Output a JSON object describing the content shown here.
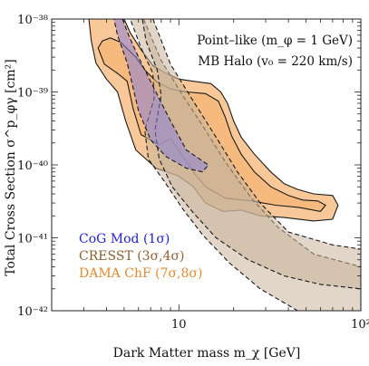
{
  "chart_data": {
    "type": "area",
    "xlabel": "Dark Matter mass   m_χ  [GeV]",
    "ylabel": "Total Cross Section  σ^p_φγ [cm²]",
    "xscale": "log",
    "yscale": "log",
    "xlim": [
      2,
      100
    ],
    "ylim": [
      1e-42,
      1e-38
    ],
    "x_tick_labels": [
      {
        "value": 10,
        "label": "10"
      },
      {
        "value": 100,
        "label": "10²"
      }
    ],
    "y_tick_labels": [
      {
        "value": 1e-38,
        "label": "10⁻³⁸"
      },
      {
        "value": 1e-39,
        "label": "10⁻³⁹"
      },
      {
        "value": 1e-40,
        "label": "10⁻⁴⁰"
      },
      {
        "value": 1e-41,
        "label": "10⁻⁴¹"
      },
      {
        "value": 1e-42,
        "label": "10⁻⁴²"
      }
    ],
    "annotations": [
      "Point–like (m_φ = 1 GeV)",
      "MB Halo (v₀ = 220 km/s)"
    ],
    "legend_position": "bottom-left",
    "series": [
      {
        "name": "CoG Mod (1σ)",
        "color": "#2222cc",
        "fill": "#8a7fd8",
        "contours": [
          {
            "level": "1σ",
            "points": [
              [
                4.9,
                1e-38
              ],
              [
                5.3,
                6e-39
              ],
              [
                6.0,
                3e-39
              ],
              [
                7.2,
                1.2e-39
              ],
              [
                9.0,
                4e-40
              ],
              [
                11.0,
                1.6e-40
              ],
              [
                14.5,
                1e-40
              ],
              [
                13.5,
                8e-41
              ],
              [
                11.0,
                9e-41
              ],
              [
                8.5,
                1.3e-40
              ],
              [
                7.0,
                2.2e-40
              ],
              [
                6.0,
                5.5e-40
              ],
              [
                5.2,
                2.5e-39
              ],
              [
                4.6,
                6e-39
              ],
              [
                4.4,
                1e-38
              ]
            ]
          }
        ]
      },
      {
        "name": "CRESST (3σ,4σ)",
        "color": "#8b5e2e",
        "fill": "#c9b49a",
        "contours": [
          {
            "level": "4σ",
            "points": [
              [
                6.4,
                1e-38
              ],
              [
                8.0,
                2.7e-39
              ],
              [
                10.5,
                9e-40
              ],
              [
                14.0,
                3e-40
              ],
              [
                18.0,
                1.1e-40
              ],
              [
                25.0,
                3.5e-41
              ],
              [
                35.0,
                1.4e-41
              ],
              [
                55.0,
                6e-42
              ],
              [
                100.0,
                4e-42
              ],
              [
                100.0,
                1e-42
              ],
              [
                45.0,
                1e-42
              ],
              [
                28.0,
                2e-42
              ],
              [
                19.0,
                4.5e-42
              ],
              [
                13.5,
                1.1e-41
              ],
              [
                10.5,
                2.5e-41
              ],
              [
                8.3,
                6e-41
              ],
              [
                6.8,
                1.2e-40
              ],
              [
                6.5,
                3e-40
              ],
              [
                7.3,
                8e-40
              ],
              [
                7.2,
                1.8e-39
              ],
              [
                6.2,
                4e-39
              ],
              [
                5.4,
                1e-38
              ]
            ]
          },
          {
            "level": "3σ",
            "points": [
              [
                7.2,
                1e-38
              ],
              [
                9.0,
                2.4e-39
              ],
              [
                12.0,
                7.5e-40
              ],
              [
                16.0,
                2.4e-40
              ],
              [
                21.0,
                8e-41
              ],
              [
                28.0,
                3e-41
              ],
              [
                40.0,
                1.2e-41
              ],
              [
                70.0,
                8e-42
              ],
              [
                100.0,
                7e-42
              ],
              [
                100.0,
                2e-42
              ],
              [
                60.0,
                2.3e-42
              ],
              [
                38.0,
                3e-42
              ],
              [
                24.0,
                5e-42
              ],
              [
                16.0,
                1e-41
              ],
              [
                12.0,
                2.2e-41
              ],
              [
                9.2,
                5e-41
              ],
              [
                7.8,
                1.2e-40
              ],
              [
                7.4,
                3e-40
              ],
              [
                8.0,
                9e-40
              ],
              [
                7.6,
                2e-39
              ],
              [
                6.6,
                5e-39
              ],
              [
                6.3,
                1e-38
              ]
            ]
          }
        ]
      },
      {
        "name": "DAMA ChF (7σ,8σ)",
        "color": "#e08a30",
        "fill": "#f6b675",
        "contours": [
          {
            "level": "8σ",
            "points": [
              [
                3.2,
                1e-38
              ],
              [
                3.3,
                5e-39
              ],
              [
                3.5,
                2.5e-39
              ],
              [
                4.0,
                1.5e-39
              ],
              [
                4.6,
                1e-39
              ],
              [
                5.1,
                4e-40
              ],
              [
                5.8,
                1.6e-40
              ],
              [
                7.5,
                9e-41
              ],
              [
                10.0,
                7e-41
              ],
              [
                12.0,
                5e-41
              ],
              [
                14.0,
                3e-41
              ],
              [
                17.5,
                2.3e-41
              ],
              [
                22.0,
                2.4e-41
              ],
              [
                28.0,
                2e-41
              ],
              [
                38.0,
                1.9e-41
              ],
              [
                55.0,
                1.7e-41
              ],
              [
                70.0,
                1.8e-41
              ],
              [
                75.0,
                2.8e-41
              ],
              [
                70.0,
                3.8e-41
              ],
              [
                55.0,
                4e-41
              ],
              [
                45.0,
                4.6e-41
              ],
              [
                38.0,
                5.5e-41
              ],
              [
                32.0,
                8e-41
              ],
              [
                26.0,
                1.4e-40
              ],
              [
                22.0,
                2.4e-40
              ],
              [
                20.0,
                4e-40
              ],
              [
                18.5,
                7e-40
              ],
              [
                17.0,
                1e-39
              ],
              [
                15.0,
                1.3e-39
              ],
              [
                12.0,
                1.4e-39
              ],
              [
                10.0,
                1.5e-39
              ],
              [
                8.5,
                1.8e-39
              ],
              [
                7.2,
                2.3e-39
              ],
              [
                6.2,
                3.8e-39
              ],
              [
                5.4,
                6.5e-39
              ],
              [
                5.0,
                1e-38
              ]
            ]
          },
          {
            "level": "7σ",
            "points": [
              [
                3.6,
                4e-39
              ],
              [
                3.9,
                2.4e-39
              ],
              [
                4.6,
                1.8e-39
              ],
              [
                5.2,
                1.4e-39
              ],
              [
                5.6,
                6e-40
              ],
              [
                6.2,
                2.6e-40
              ],
              [
                7.8,
                1.9e-40
              ],
              [
                9.0,
                2.3e-40
              ],
              [
                10.5,
                1.3e-40
              ],
              [
                12.0,
                8e-41
              ],
              [
                14.0,
                5e-41
              ],
              [
                18.0,
                3.5e-41
              ],
              [
                25.0,
                3.2e-41
              ],
              [
                34.0,
                2.8e-41
              ],
              [
                46.0,
                2.6e-41
              ],
              [
                60.0,
                2.3e-41
              ],
              [
                64.0,
                2.8e-41
              ],
              [
                58.0,
                3.2e-41
              ],
              [
                48.0,
                3.3e-41
              ],
              [
                40.0,
                3.8e-41
              ],
              [
                32.0,
                5e-41
              ],
              [
                26.0,
                8e-41
              ],
              [
                22.0,
                1.4e-40
              ],
              [
                19.5,
                2.5e-40
              ],
              [
                18.0,
                4.5e-40
              ],
              [
                16.5,
                7.5e-40
              ],
              [
                14.0,
                9.5e-40
              ],
              [
                11.0,
                1e-39
              ],
              [
                9.0,
                1.1e-39
              ],
              [
                7.5,
                1.4e-39
              ],
              [
                6.5,
                2e-39
              ],
              [
                5.8,
                3e-39
              ],
              [
                4.8,
                4.8e-39
              ],
              [
                4.2,
                5.5e-39
              ],
              [
                3.8,
                5e-39
              ]
            ]
          }
        ]
      }
    ]
  }
}
